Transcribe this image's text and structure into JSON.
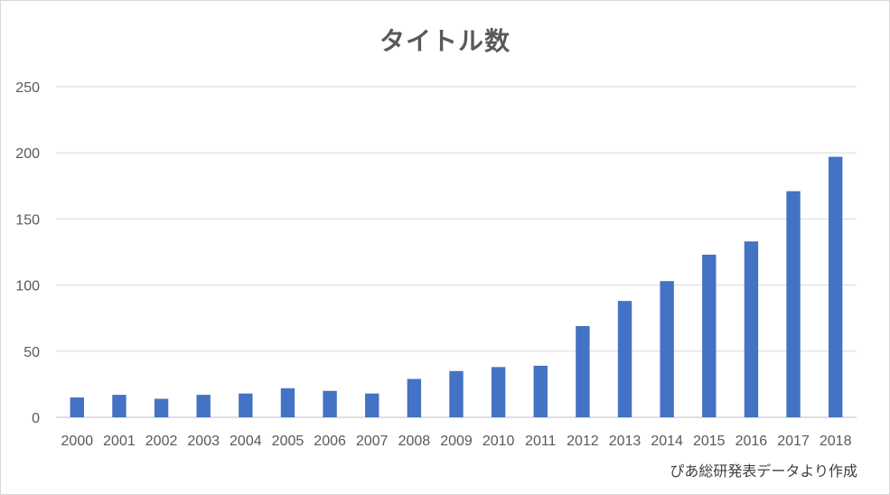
{
  "chart_data": {
    "type": "bar",
    "title": "タイトル数",
    "note": "ぴあ総研発表データより作成",
    "xlabel": "",
    "ylabel": "",
    "ylim": [
      0,
      250
    ],
    "yticks": [
      0,
      50,
      100,
      150,
      200,
      250
    ],
    "grid": true,
    "legend": "none",
    "bar_color": "#4472c4",
    "categories": [
      "2000",
      "2001",
      "2002",
      "2003",
      "2004",
      "2005",
      "2006",
      "2007",
      "2008",
      "2009",
      "2010",
      "2011",
      "2012",
      "2013",
      "2014",
      "2015",
      "2016",
      "2017",
      "2018"
    ],
    "values": [
      15,
      17,
      14,
      17,
      18,
      22,
      20,
      18,
      29,
      35,
      38,
      39,
      69,
      88,
      103,
      123,
      133,
      171,
      197
    ]
  }
}
